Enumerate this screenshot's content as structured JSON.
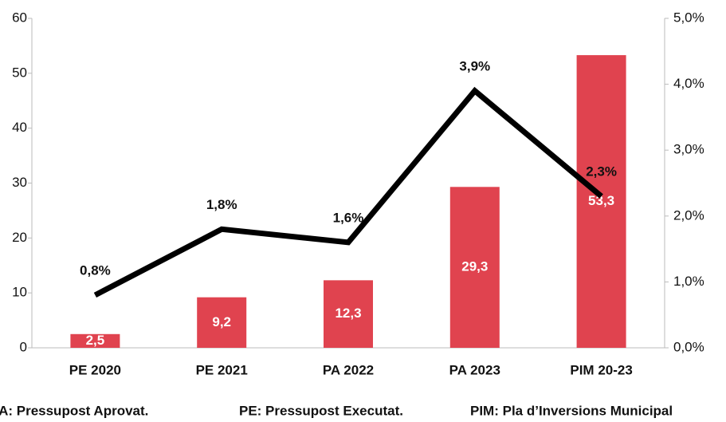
{
  "chart_data": {
    "type": "bar_line",
    "categories": [
      "PE 2020",
      "PE 2021",
      "PA 2022",
      "PA 2023",
      "PIM 20-23"
    ],
    "series": [
      {
        "type": "bar",
        "color": "#e0434f",
        "values": [
          2.5,
          9.2,
          12.3,
          29.3,
          53.3
        ],
        "value_labels": [
          "2,5",
          "9,2",
          "12,3",
          "29,3",
          "53,3"
        ]
      },
      {
        "type": "line",
        "axis": "y2",
        "color": "#000000",
        "values": [
          0.8,
          1.8,
          1.6,
          3.9,
          2.3
        ],
        "value_labels": [
          "0,8%",
          "1,8%",
          "1,6%",
          "3,9%",
          "2,3%"
        ]
      }
    ],
    "ylim": [
      0,
      60
    ],
    "yticks": [
      0,
      10,
      20,
      30,
      40,
      50,
      60
    ],
    "y2lim": [
      0,
      5
    ],
    "y2ticks": [
      {
        "value": 0,
        "label": "0,0%"
      },
      {
        "value": 1,
        "label": "1,0%"
      },
      {
        "value": 2,
        "label": "2,0%"
      },
      {
        "value": 3,
        "label": "3,0%"
      },
      {
        "value": 4,
        "label": "4,0%"
      },
      {
        "value": 5,
        "label": "5,0%"
      }
    ],
    "notes": [
      "PA: Pressupost Aprovat.",
      "PE: Pressupost Executat.",
      "PIM: Pla d’Inversions Municipal"
    ]
  }
}
